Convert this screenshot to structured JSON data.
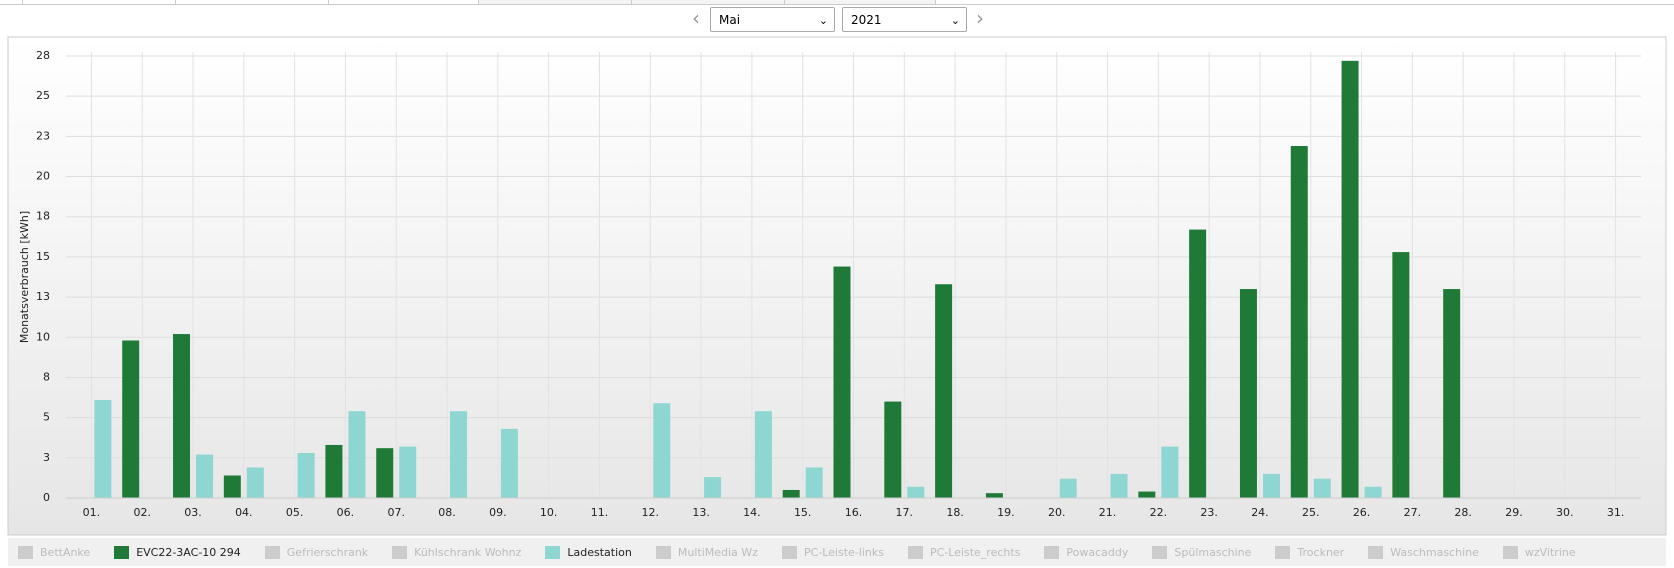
{
  "controls": {
    "month": "Mai",
    "year": "2021"
  },
  "chart_data": {
    "type": "bar",
    "y_label": "Monatsverbrauch [kWh]",
    "categories": [
      "01.",
      "02.",
      "03.",
      "04.",
      "05.",
      "06.",
      "07.",
      "08.",
      "09.",
      "10.",
      "11.",
      "12.",
      "13.",
      "14.",
      "15.",
      "16.",
      "17.",
      "18.",
      "19.",
      "20.",
      "21.",
      "22.",
      "23.",
      "24.",
      "25.",
      "26.",
      "27.",
      "28.",
      "29.",
      "30.",
      "31."
    ],
    "ylim": [
      0,
      27.5
    ],
    "yticks": [
      0,
      {
        "value": 2.5,
        "label": "3"
      },
      5,
      {
        "value": 7.5,
        "label": "8"
      },
      10,
      {
        "value": 12.5,
        "label": "13"
      },
      15,
      {
        "value": 17.5,
        "label": "18"
      },
      20,
      {
        "value": 22.5,
        "label": "23"
      },
      25,
      {
        "value": 27.5,
        "label": "28"
      }
    ],
    "grid": true,
    "series": [
      {
        "name": "BettAnke",
        "color": "#cccccc",
        "visible": false
      },
      {
        "name": "EVC22-3AC-10 294",
        "color": "#1f7a38",
        "visible": true,
        "values": [
          null,
          9.8,
          10.2,
          1.4,
          null,
          3.3,
          3.1,
          null,
          null,
          null,
          null,
          null,
          null,
          null,
          0.5,
          14.4,
          6.0,
          13.3,
          0.3,
          null,
          null,
          0.4,
          16.7,
          13.0,
          21.9,
          27.2,
          15.3,
          13.0,
          null,
          null,
          null
        ]
      },
      {
        "name": "Gefrierschrank",
        "color": "#cccccc",
        "visible": false
      },
      {
        "name": "Kühlschrank Wohnz",
        "color": "#cccccc",
        "visible": false
      },
      {
        "name": "Ladestation",
        "color": "#8dd6d2",
        "visible": true,
        "values": [
          6.1,
          null,
          2.7,
          1.9,
          2.8,
          5.4,
          3.2,
          5.4,
          4.3,
          null,
          null,
          5.9,
          1.3,
          5.4,
          1.9,
          null,
          0.7,
          null,
          null,
          1.2,
          1.5,
          3.2,
          null,
          1.5,
          1.2,
          0.7,
          null,
          null,
          null,
          null,
          null
        ]
      },
      {
        "name": "MultiMedia Wz",
        "color": "#cccccc",
        "visible": false
      },
      {
        "name": "PC-Leiste-links",
        "color": "#cccccc",
        "visible": false
      },
      {
        "name": "PC-Leiste_rechts",
        "color": "#cccccc",
        "visible": false
      },
      {
        "name": "Powacaddy",
        "color": "#cccccc",
        "visible": false
      },
      {
        "name": "Spülmaschine",
        "color": "#cccccc",
        "visible": false
      },
      {
        "name": "Trockner",
        "color": "#cccccc",
        "visible": false
      },
      {
        "name": "Waschmaschine",
        "color": "#cccccc",
        "visible": false
      },
      {
        "name": "wzVitrine",
        "color": "#cccccc",
        "visible": false
      }
    ]
  }
}
